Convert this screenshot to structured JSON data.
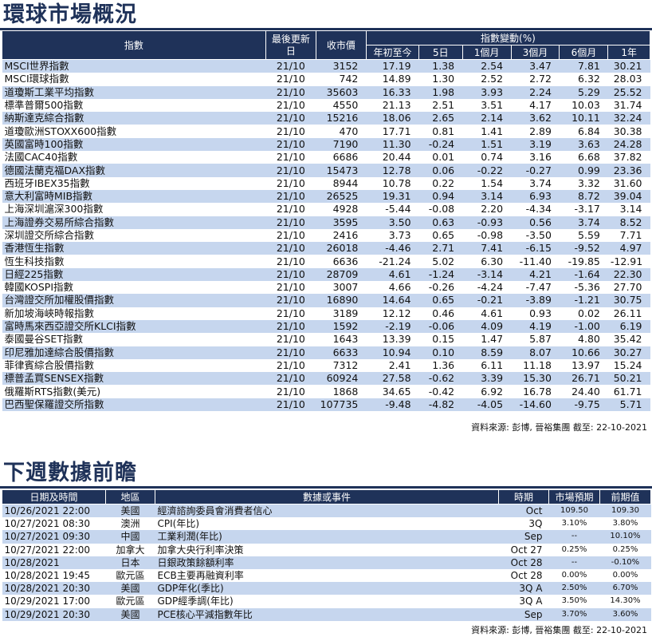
{
  "markets": {
    "title": "環球市場概況",
    "headers": {
      "index": "指數",
      "date": "最後更新日",
      "close": "收市價",
      "change_group": "指數變動(%)",
      "ytd": "年初至今",
      "d5": "5日",
      "m1": "1個月",
      "m3": "3個月",
      "m6": "6個月",
      "y1": "1年"
    },
    "rows": [
      [
        "MSCI世界指數",
        "21/10",
        "3152",
        "17.19",
        "1.38",
        "2.54",
        "3.47",
        "7.81",
        "30.21"
      ],
      [
        "MSCI環球指數",
        "21/10",
        "742",
        "14.89",
        "1.30",
        "2.52",
        "2.72",
        "6.32",
        "28.03"
      ],
      [
        "道瓊斯工業平均指數",
        "21/10",
        "35603",
        "16.33",
        "1.98",
        "3.93",
        "2.24",
        "5.29",
        "25.52"
      ],
      [
        "標準普爾500指數",
        "21/10",
        "4550",
        "21.13",
        "2.51",
        "3.51",
        "4.17",
        "10.03",
        "31.74"
      ],
      [
        "納斯達克綜合指數",
        "21/10",
        "15216",
        "18.06",
        "2.65",
        "2.14",
        "3.62",
        "10.11",
        "32.24"
      ],
      [
        "道瓊歐洲STOXX600指數",
        "21/10",
        "470",
        "17.71",
        "0.81",
        "1.41",
        "2.89",
        "6.84",
        "30.38"
      ],
      [
        "英國富時100指數",
        "21/10",
        "7190",
        "11.30",
        "-0.24",
        "1.51",
        "3.19",
        "3.63",
        "24.28"
      ],
      [
        "法國CAC40指數",
        "21/10",
        "6686",
        "20.44",
        "0.01",
        "0.74",
        "3.16",
        "6.68",
        "37.82"
      ],
      [
        "德國法蘭克福DAX指數",
        "21/10",
        "15473",
        "12.78",
        "0.06",
        "-0.22",
        "-0.27",
        "0.99",
        "23.36"
      ],
      [
        "西班牙IBEX35指數",
        "21/10",
        "8944",
        "10.78",
        "0.22",
        "1.54",
        "3.74",
        "3.32",
        "31.60"
      ],
      [
        "意大利富時MIB指數",
        "21/10",
        "26525",
        "19.31",
        "0.94",
        "3.14",
        "6.93",
        "8.72",
        "39.04"
      ],
      [
        "上海深圳滬深300指數",
        "21/10",
        "4928",
        "-5.44",
        "-0.08",
        "2.20",
        "-4.34",
        "-3.17",
        "3.14"
      ],
      [
        "上海證券交易所綜合指數",
        "21/10",
        "3595",
        "3.50",
        "0.63",
        "-0.93",
        "0.56",
        "3.74",
        "8.52"
      ],
      [
        "深圳證交所綜合指數",
        "21/10",
        "2416",
        "3.73",
        "0.65",
        "-0.98",
        "-3.50",
        "5.59",
        "7.71"
      ],
      [
        "香港恆生指數",
        "21/10",
        "26018",
        "-4.46",
        "2.71",
        "7.41",
        "-6.15",
        "-9.52",
        "4.97"
      ],
      [
        "恆生科技指數",
        "21/10",
        "6636",
        "-21.24",
        "5.02",
        "6.30",
        "-11.40",
        "-19.85",
        "-12.91"
      ],
      [
        "日經225指數",
        "21/10",
        "28709",
        "4.61",
        "-1.24",
        "-3.14",
        "4.21",
        "-1.64",
        "22.30"
      ],
      [
        "韓國KOSPI指數",
        "21/10",
        "3007",
        "4.66",
        "-0.26",
        "-4.24",
        "-7.47",
        "-5.36",
        "27.70"
      ],
      [
        "台灣證交所加權股價指數",
        "21/10",
        "16890",
        "14.64",
        "0.65",
        "-0.21",
        "-3.89",
        "-1.21",
        "30.75"
      ],
      [
        "新加坡海峽時報指數",
        "21/10",
        "3189",
        "12.12",
        "0.46",
        "4.61",
        "0.93",
        "0.02",
        "26.11"
      ],
      [
        "富時馬來西亞證交所KLCI指數",
        "21/10",
        "1592",
        "-2.19",
        "-0.06",
        "4.09",
        "4.19",
        "-1.00",
        "6.19"
      ],
      [
        "泰國曼谷SET指數",
        "21/10",
        "1643",
        "13.39",
        "0.15",
        "1.47",
        "5.87",
        "4.80",
        "35.42"
      ],
      [
        "印尼雅加達綜合股價指數",
        "21/10",
        "6633",
        "10.94",
        "0.10",
        "8.59",
        "8.07",
        "10.66",
        "30.27"
      ],
      [
        "菲律賓綜合股價指數",
        "21/10",
        "7312",
        "2.41",
        "1.36",
        "6.11",
        "11.18",
        "13.97",
        "15.24"
      ],
      [
        "標普孟買SENSEX指數",
        "21/10",
        "60924",
        "27.58",
        "-0.62",
        "3.39",
        "15.30",
        "26.71",
        "50.21"
      ],
      [
        "俄羅斯RTS指數(美元)",
        "21/10",
        "1868",
        "34.65",
        "-0.42",
        "6.92",
        "16.78",
        "24.40",
        "61.71"
      ],
      [
        "巴西聖保羅證交所指數",
        "21/10",
        "107735",
        "-9.48",
        "-4.82",
        "-4.05",
        "-14.60",
        "-9.75",
        "5.71"
      ]
    ],
    "source": "資料來源: 彭博, 晉裕集團 截至: 22-10-2021"
  },
  "events": {
    "title": "下週數據前瞻",
    "headers": {
      "datetime": "日期及時間",
      "region": "地區",
      "event": "數據或事件",
      "period": "時期",
      "forecast": "市場預期",
      "previous": "前期值"
    },
    "rows": [
      [
        "10/26/2021 22:00",
        "美國",
        "經濟諮詢委員會消費者信心",
        "Oct",
        "109.50",
        "109.30"
      ],
      [
        "10/27/2021 08:30",
        "澳洲",
        "CPI(年比)",
        "3Q",
        "3.10%",
        "3.80%"
      ],
      [
        "10/27/2021 09:30",
        "中國",
        "工業利潤(年比)",
        "Sep",
        "--",
        "10.10%"
      ],
      [
        "10/27/2021 22:00",
        "加拿大",
        "加拿大央行利率決策",
        "Oct 27",
        "0.25%",
        "0.25%"
      ],
      [
        "10/28/2021",
        "日本",
        "日銀政策餘額利率",
        "Oct 28",
        "--",
        "-0.10%"
      ],
      [
        "10/28/2021 19:45",
        "歐元區",
        "ECB主要再融資利率",
        "Oct 28",
        "0.00%",
        "0.00%"
      ],
      [
        "10/28/2021 20:30",
        "美國",
        "GDP年化(季比)",
        "3Q A",
        "2.50%",
        "6.70%"
      ],
      [
        "10/29/2021 17:00",
        "歐元區",
        "GDP經季調(年比)",
        "3Q A",
        "3.50%",
        "14.30%"
      ],
      [
        "10/29/2021 20:30",
        "美國",
        "PCE核心平減指數年比",
        "Sep",
        "3.70%",
        "3.60%"
      ]
    ],
    "source": "資料來源: 彭博, 晉裕集團 截至: 22-10-2021"
  }
}
